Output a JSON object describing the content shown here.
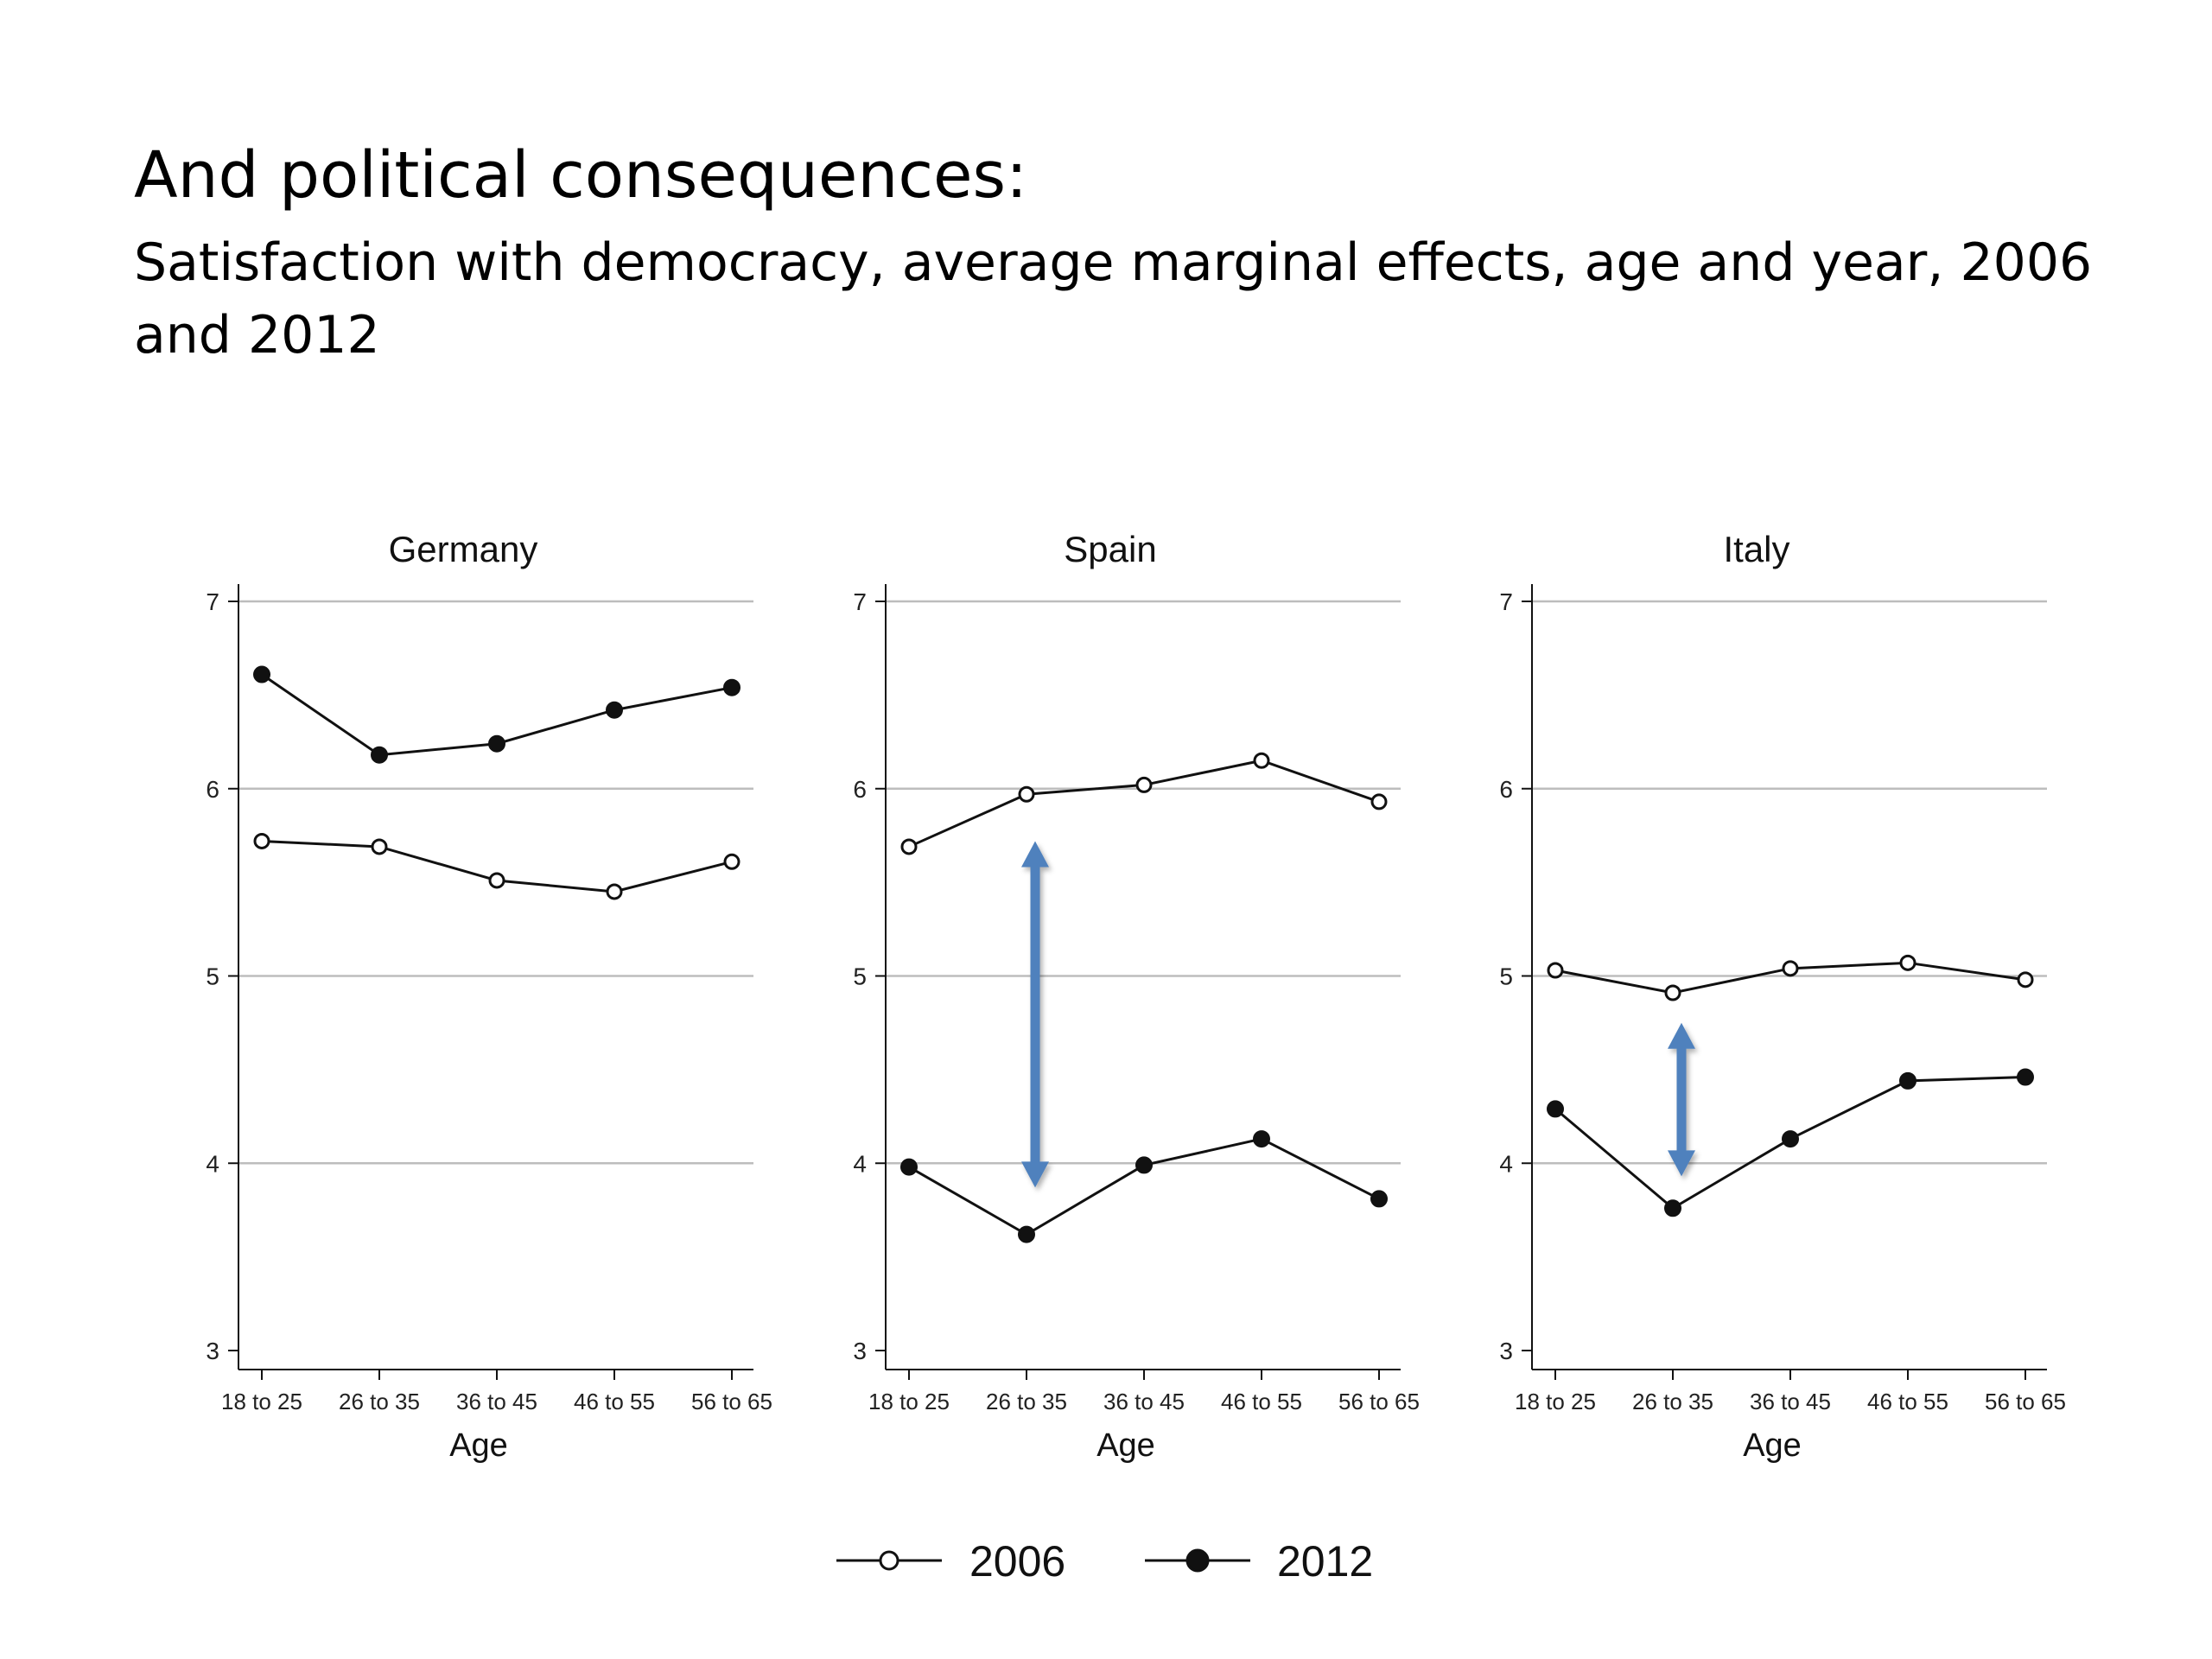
{
  "slide": {
    "title": "And political consequences:",
    "subtitle": "Satisfaction with democracy, average marginal effects, age and year, 2006 and 2012"
  },
  "colors": {
    "line": "#111111",
    "grid": "#bdbdbd",
    "arrow": "#4f81bd"
  },
  "chart_data": {
    "type": "line",
    "categories": [
      "18 to 25",
      "26 to 35",
      "36 to 45",
      "46 to 55",
      "56 to 65"
    ],
    "xlabel": "Age",
    "ylim": [
      3,
      7
    ],
    "yticks": [
      3,
      4,
      5,
      6,
      7
    ],
    "grid": true,
    "legend": {
      "position": "bottom",
      "entries": [
        {
          "name": "2006",
          "marker": "hollow-circle"
        },
        {
          "name": "2012",
          "marker": "filled-circle"
        }
      ]
    },
    "panels": [
      {
        "title": "Germany",
        "series": [
          {
            "name": "2006",
            "values": [
              5.72,
              5.69,
              5.51,
              5.45,
              5.61
            ]
          },
          {
            "name": "2012",
            "values": [
              6.61,
              6.18,
              6.24,
              6.42,
              6.54
            ]
          }
        ],
        "annotation": null
      },
      {
        "title": "Spain",
        "series": [
          {
            "name": "2006",
            "values": [
              5.69,
              5.97,
              6.02,
              6.15,
              5.93
            ]
          },
          {
            "name": "2012",
            "values": [
              3.98,
              3.62,
              3.99,
              4.13,
              3.81
            ]
          }
        ],
        "annotation": {
          "type": "double-arrow",
          "category": "26 to 35",
          "from": 3.87,
          "to": 5.72
        }
      },
      {
        "title": "Italy",
        "series": [
          {
            "name": "2006",
            "values": [
              5.03,
              4.91,
              5.04,
              5.07,
              4.98
            ]
          },
          {
            "name": "2012",
            "values": [
              4.29,
              3.76,
              4.13,
              4.44,
              4.46
            ]
          }
        ],
        "annotation": {
          "type": "double-arrow",
          "category": "26 to 35",
          "from": 3.93,
          "to": 4.75
        }
      }
    ]
  }
}
